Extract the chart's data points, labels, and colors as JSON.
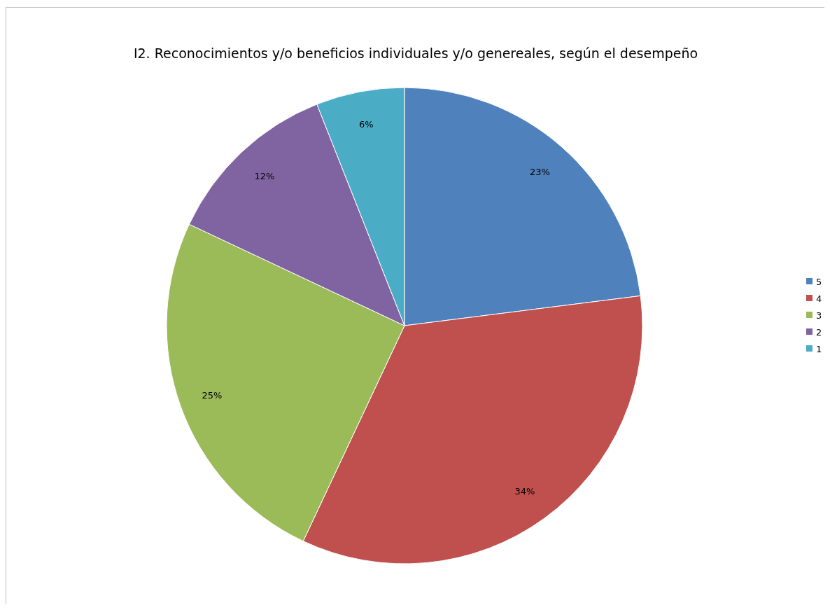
{
  "chart_data": {
    "type": "pie",
    "title": "I2. Reconocimientos y/o beneficios individuales y/o genereales, según el desempeño",
    "categories": [
      "5",
      "4",
      "3",
      "2",
      "1"
    ],
    "values": [
      23,
      34,
      25,
      12,
      6
    ],
    "value_labels": [
      "23%",
      "34%",
      "25%",
      "12%",
      "6%"
    ],
    "colors": [
      "#4f81bd",
      "#c0504d",
      "#9bbb59",
      "#8064a2",
      "#4bacc6"
    ],
    "legend": "right"
  }
}
